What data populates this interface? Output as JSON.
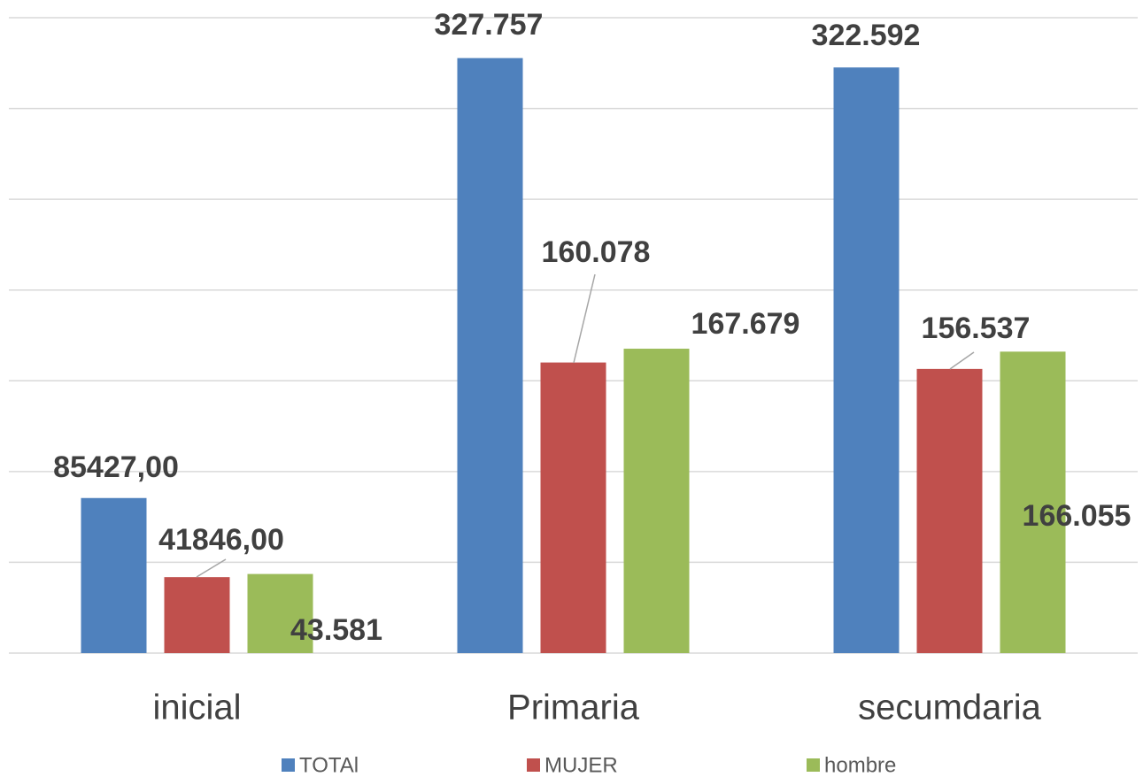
{
  "chart_data": {
    "type": "bar",
    "categories": [
      "inicial",
      "Primaria",
      "secumdaria"
    ],
    "series": [
      {
        "name": "TOTAl",
        "color": "#4f81bd",
        "values": [
          85427,
          327757,
          322592
        ],
        "value_labels": [
          "85427,00",
          "327.757",
          "322.592"
        ]
      },
      {
        "name": "MUJER",
        "color": "#c0504d",
        "values": [
          41846,
          160078,
          156537
        ],
        "value_labels": [
          "41846,00",
          "160.078",
          "156.537"
        ]
      },
      {
        "name": "hombre",
        "color": "#9bbb59",
        "values": [
          43581,
          167679,
          166055
        ],
        "value_labels": [
          "43.581",
          "167.679",
          "166.055"
        ]
      }
    ],
    "ylim": [
      0,
      350000
    ],
    "yticks": [
      0,
      50000,
      100000,
      150000,
      200000,
      250000,
      300000,
      350000
    ],
    "grid": true,
    "legend": "bottom"
  }
}
